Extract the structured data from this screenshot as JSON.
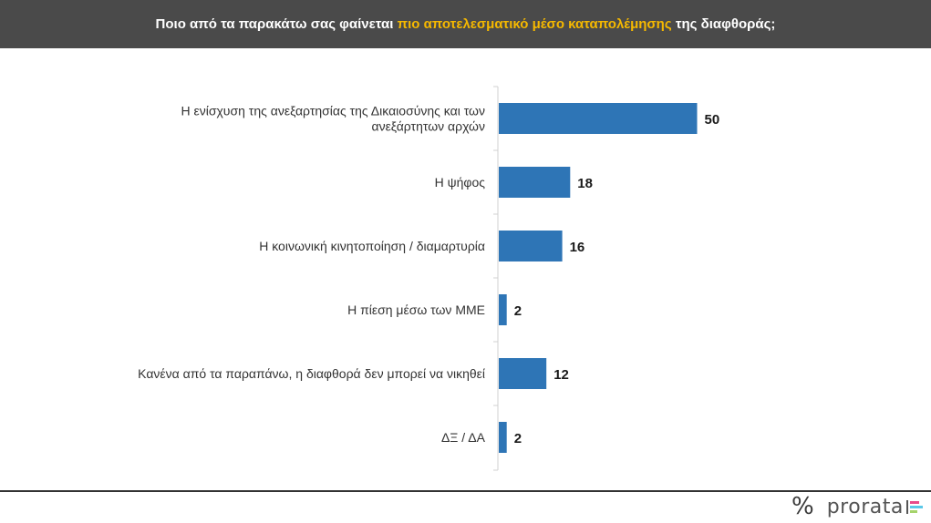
{
  "header": {
    "title_before": "Ποιο από τα παρακάτω σας φαίνεται ",
    "title_highlight": "πιο αποτελεσματικό μέσο καταπολέμησης",
    "title_after": " της διαφθοράς;"
  },
  "colors": {
    "header_bg": "#4a4a4a",
    "highlight": "#f5b800",
    "bar": "#2e75b6"
  },
  "chart_data": {
    "type": "bar",
    "orientation": "horizontal",
    "categories": [
      [
        "Η ενίσχυση της ανεξαρτησίας της Δικαιοσύνης και των",
        "ανεξάρτητων αρχών"
      ],
      [
        "Η ψήφος"
      ],
      [
        "Η κοινωνική κινητοποίηση / διαμαρτυρία"
      ],
      [
        "Η πίεση μέσω των ΜΜΕ"
      ],
      [
        "Κανένα από τα παραπάνω, η διαφθορά δεν μπορεί να νικηθεί"
      ],
      [
        "ΔΞ / ΔΑ"
      ]
    ],
    "values": [
      50,
      18,
      16,
      2,
      12,
      2
    ],
    "data_labels": [
      "50",
      "18",
      "16",
      "2",
      "12",
      "2"
    ],
    "xlim": [
      0,
      100
    ],
    "grid": false,
    "legend": false
  },
  "footer": {
    "logo_mark": "%",
    "logo_text": "prorata",
    "logo_bar_colors": [
      "#e84b8a",
      "#5bc8e8",
      "#a5d36b"
    ]
  }
}
